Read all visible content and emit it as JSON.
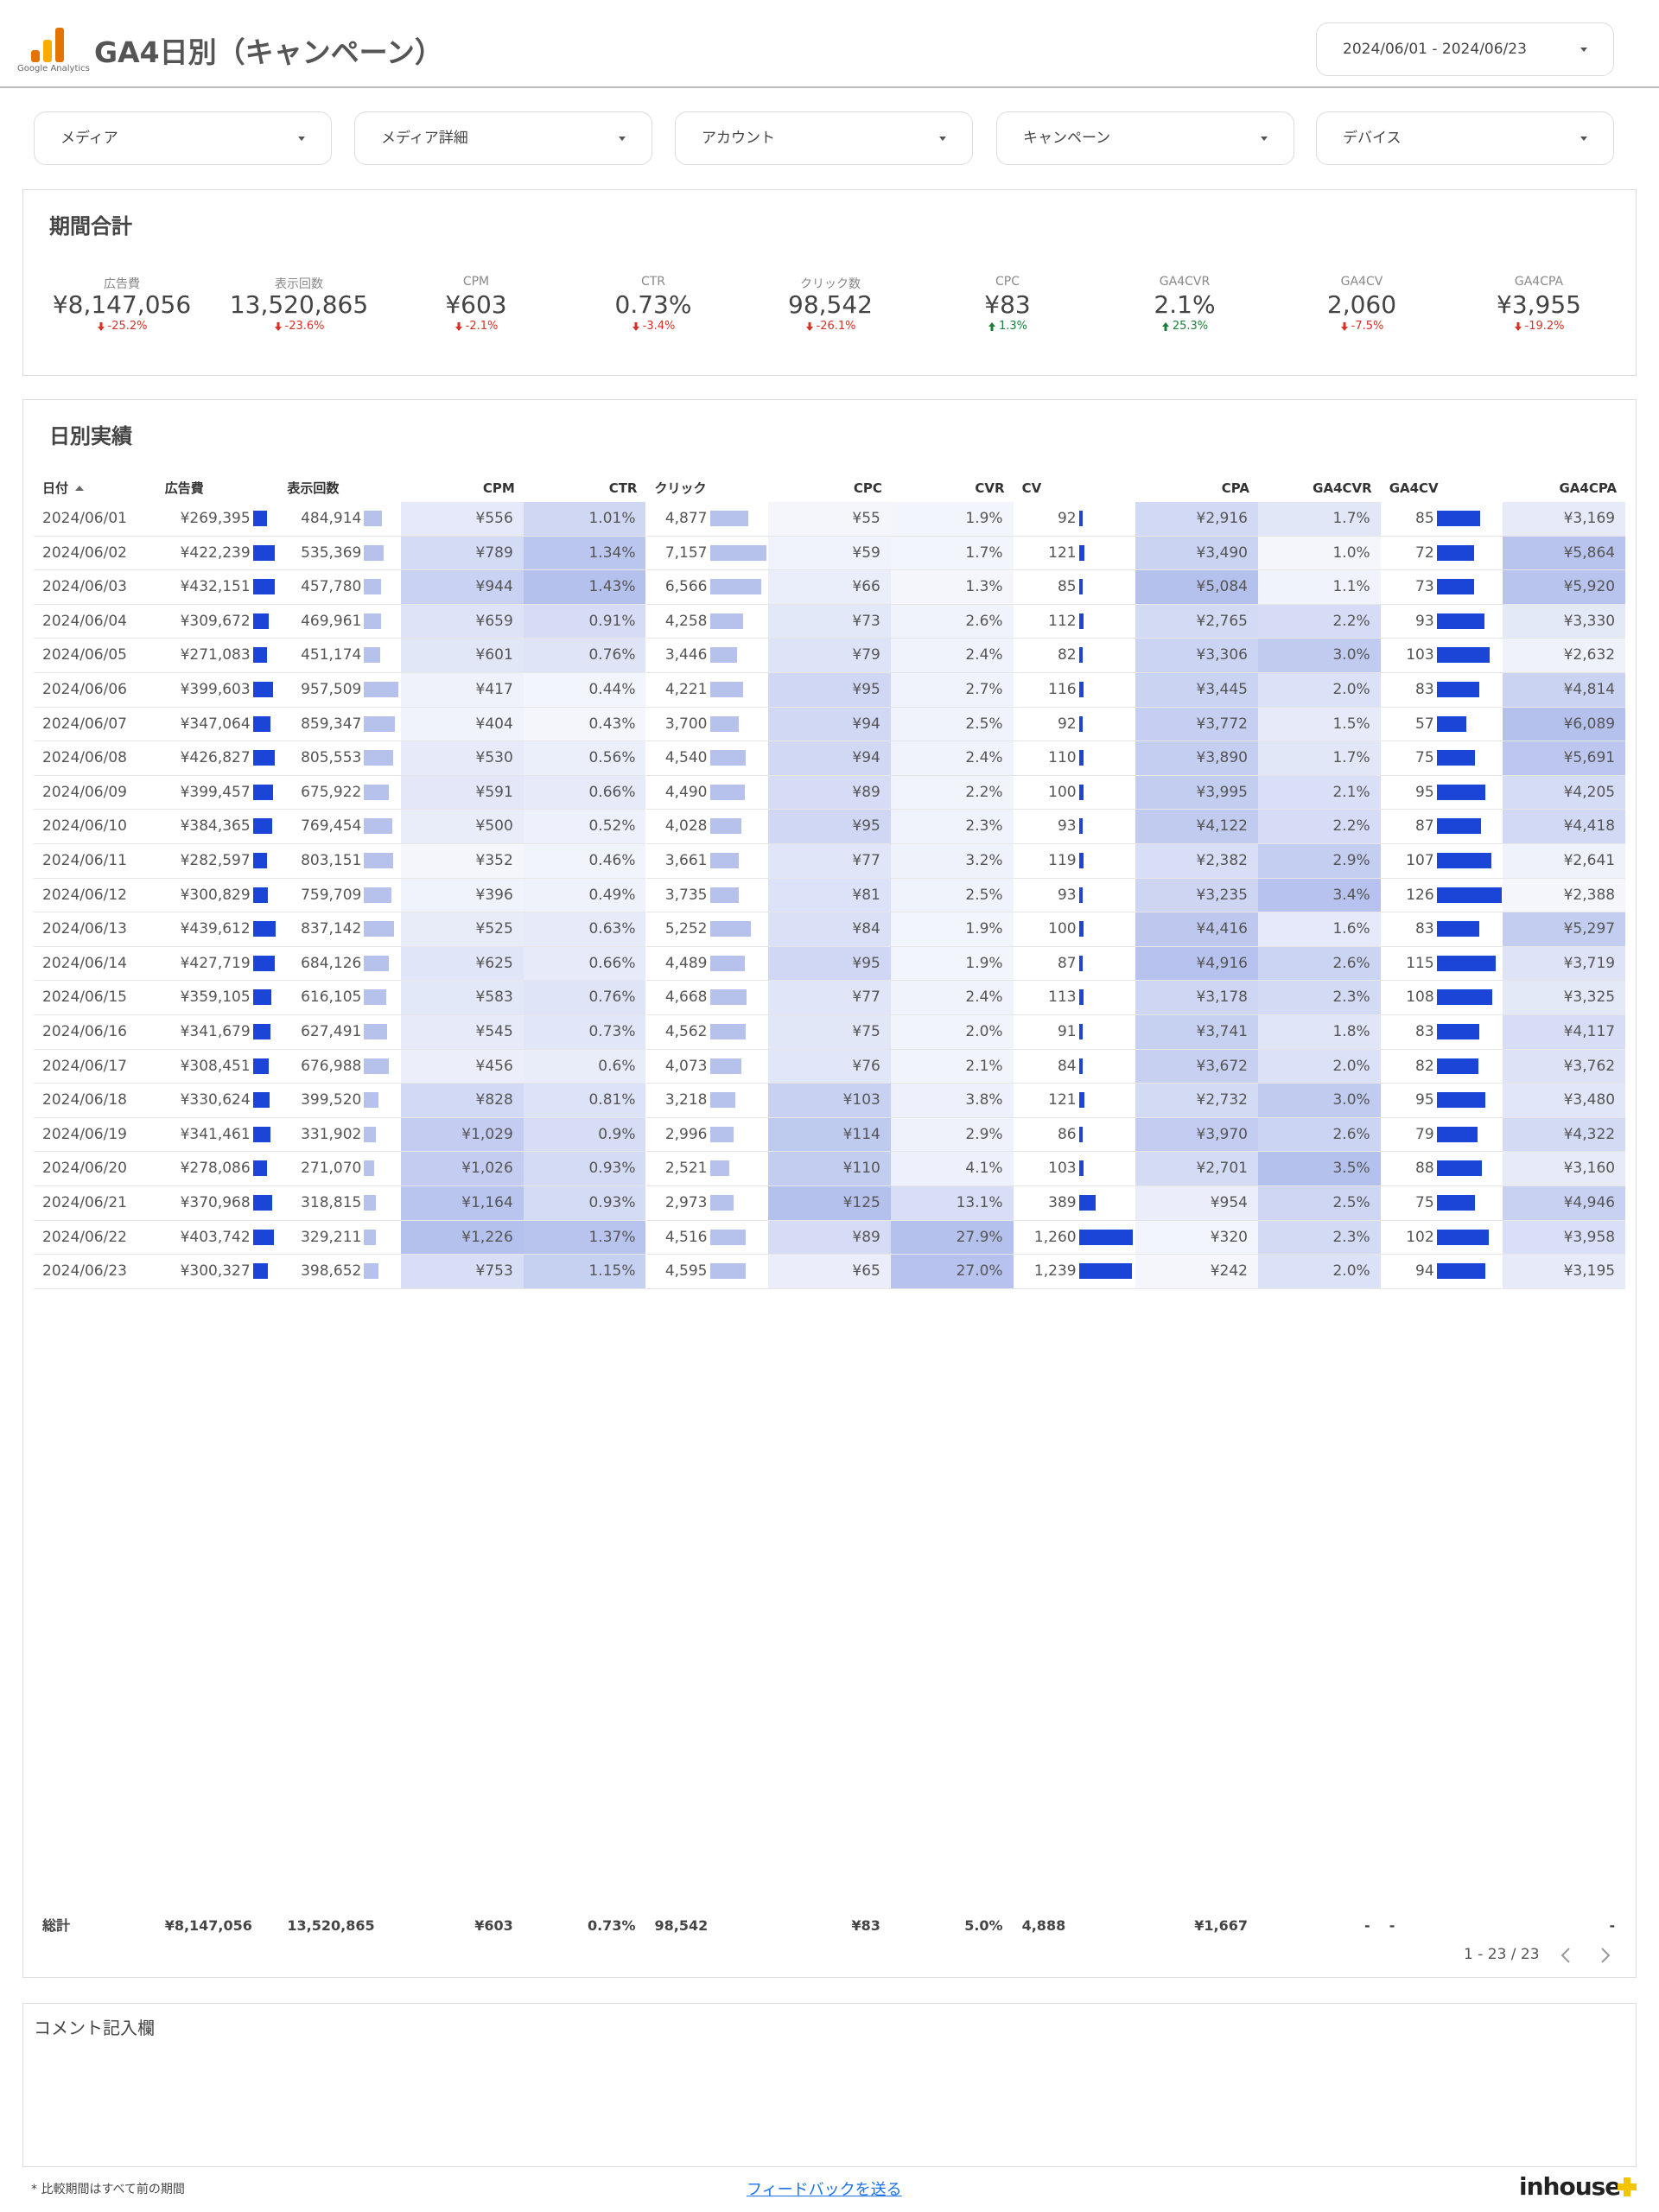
{
  "header": {
    "logo_text": "Google Analytics",
    "title": "GA4日別（キャンペーン）",
    "date_range": "2024/06/01 - 2024/06/23"
  },
  "filters": [
    "メディア",
    "メディア詳細",
    "アカウント",
    "キャンペーン",
    "デバイス"
  ],
  "summary": {
    "title": "期間合計",
    "metrics": [
      {
        "label": "広告費",
        "value": "¥8,147,056",
        "change": "-25.2%"
      },
      {
        "label": "表示回数",
        "value": "13,520,865",
        "change": "-23.6%"
      },
      {
        "label": "CPM",
        "value": "¥603",
        "change": "-2.1%"
      },
      {
        "label": "CTR",
        "value": "0.73%",
        "change": "-3.4%"
      },
      {
        "label": "クリック数",
        "value": "98,542",
        "change": "-26.1%"
      },
      {
        "label": "CPC",
        "value": "¥83",
        "change": "1.3%"
      },
      {
        "label": "GA4CVR",
        "value": "2.1%",
        "change": "25.3%"
      },
      {
        "label": "GA4CV",
        "value": "2,060",
        "change": "-7.5%"
      },
      {
        "label": "GA4CPA",
        "value": "¥3,955",
        "change": "-19.2%"
      }
    ]
  },
  "table": {
    "title": "日別実績",
    "columns": [
      "日付",
      "広告費",
      "表示回数",
      "CPM",
      "CTR",
      "クリック",
      "CPC",
      "CVR",
      "CV",
      "CPA",
      "GA4CVR",
      "GA4CV",
      "GA4CPA"
    ],
    "rows": [
      [
        "2024/06/01",
        "¥269,395",
        "484,914",
        "¥556",
        "1.01%",
        "4,877",
        "¥55",
        "1.9%",
        "92",
        "¥2,916",
        "1.7%",
        "85",
        "¥3,169"
      ],
      [
        "2024/06/02",
        "¥422,239",
        "535,369",
        "¥789",
        "1.34%",
        "7,157",
        "¥59",
        "1.7%",
        "121",
        "¥3,490",
        "1.0%",
        "72",
        "¥5,864"
      ],
      [
        "2024/06/03",
        "¥432,151",
        "457,780",
        "¥944",
        "1.43%",
        "6,566",
        "¥66",
        "1.3%",
        "85",
        "¥5,084",
        "1.1%",
        "73",
        "¥5,920"
      ],
      [
        "2024/06/04",
        "¥309,672",
        "469,961",
        "¥659",
        "0.91%",
        "4,258",
        "¥73",
        "2.6%",
        "112",
        "¥2,765",
        "2.2%",
        "93",
        "¥3,330"
      ],
      [
        "2024/06/05",
        "¥271,083",
        "451,174",
        "¥601",
        "0.76%",
        "3,446",
        "¥79",
        "2.4%",
        "82",
        "¥3,306",
        "3.0%",
        "103",
        "¥2,632"
      ],
      [
        "2024/06/06",
        "¥399,603",
        "957,509",
        "¥417",
        "0.44%",
        "4,221",
        "¥95",
        "2.7%",
        "116",
        "¥3,445",
        "2.0%",
        "83",
        "¥4,814"
      ],
      [
        "2024/06/07",
        "¥347,064",
        "859,347",
        "¥404",
        "0.43%",
        "3,700",
        "¥94",
        "2.5%",
        "92",
        "¥3,772",
        "1.5%",
        "57",
        "¥6,089"
      ],
      [
        "2024/06/08",
        "¥426,827",
        "805,553",
        "¥530",
        "0.56%",
        "4,540",
        "¥94",
        "2.4%",
        "110",
        "¥3,890",
        "1.7%",
        "75",
        "¥5,691"
      ],
      [
        "2024/06/09",
        "¥399,457",
        "675,922",
        "¥591",
        "0.66%",
        "4,490",
        "¥89",
        "2.2%",
        "100",
        "¥3,995",
        "2.1%",
        "95",
        "¥4,205"
      ],
      [
        "2024/06/10",
        "¥384,365",
        "769,454",
        "¥500",
        "0.52%",
        "4,028",
        "¥95",
        "2.3%",
        "93",
        "¥4,122",
        "2.2%",
        "87",
        "¥4,418"
      ],
      [
        "2024/06/11",
        "¥282,597",
        "803,151",
        "¥352",
        "0.46%",
        "3,661",
        "¥77",
        "3.2%",
        "119",
        "¥2,382",
        "2.9%",
        "107",
        "¥2,641"
      ],
      [
        "2024/06/12",
        "¥300,829",
        "759,709",
        "¥396",
        "0.49%",
        "3,735",
        "¥81",
        "2.5%",
        "93",
        "¥3,235",
        "3.4%",
        "126",
        "¥2,388"
      ],
      [
        "2024/06/13",
        "¥439,612",
        "837,142",
        "¥525",
        "0.63%",
        "5,252",
        "¥84",
        "1.9%",
        "100",
        "¥4,416",
        "1.6%",
        "83",
        "¥5,297"
      ],
      [
        "2024/06/14",
        "¥427,719",
        "684,126",
        "¥625",
        "0.66%",
        "4,489",
        "¥95",
        "1.9%",
        "87",
        "¥4,916",
        "2.6%",
        "115",
        "¥3,719"
      ],
      [
        "2024/06/15",
        "¥359,105",
        "616,105",
        "¥583",
        "0.76%",
        "4,668",
        "¥77",
        "2.4%",
        "113",
        "¥3,178",
        "2.3%",
        "108",
        "¥3,325"
      ],
      [
        "2024/06/16",
        "¥341,679",
        "627,491",
        "¥545",
        "0.73%",
        "4,562",
        "¥75",
        "2.0%",
        "91",
        "¥3,741",
        "1.8%",
        "83",
        "¥4,117"
      ],
      [
        "2024/06/17",
        "¥308,451",
        "676,988",
        "¥456",
        "0.6%",
        "4,073",
        "¥76",
        "2.1%",
        "84",
        "¥3,672",
        "2.0%",
        "82",
        "¥3,762"
      ],
      [
        "2024/06/18",
        "¥330,624",
        "399,520",
        "¥828",
        "0.81%",
        "3,218",
        "¥103",
        "3.8%",
        "121",
        "¥2,732",
        "3.0%",
        "95",
        "¥3,480"
      ],
      [
        "2024/06/19",
        "¥341,461",
        "331,902",
        "¥1,029",
        "0.9%",
        "2,996",
        "¥114",
        "2.9%",
        "86",
        "¥3,970",
        "2.6%",
        "79",
        "¥4,322"
      ],
      [
        "2024/06/20",
        "¥278,086",
        "271,070",
        "¥1,026",
        "0.93%",
        "2,521",
        "¥110",
        "4.1%",
        "103",
        "¥2,701",
        "3.5%",
        "88",
        "¥3,160"
      ],
      [
        "2024/06/21",
        "¥370,968",
        "318,815",
        "¥1,164",
        "0.93%",
        "2,973",
        "¥125",
        "13.1%",
        "389",
        "¥954",
        "2.5%",
        "75",
        "¥4,946"
      ],
      [
        "2024/06/22",
        "¥403,742",
        "329,211",
        "¥1,226",
        "1.37%",
        "4,516",
        "¥89",
        "27.9%",
        "1,260",
        "¥320",
        "2.3%",
        "102",
        "¥3,958"
      ],
      [
        "2024/06/23",
        "¥300,327",
        "398,652",
        "¥753",
        "1.15%",
        "4,595",
        "¥65",
        "27.0%",
        "1,239",
        "¥242",
        "2.0%",
        "94",
        "¥3,195"
      ]
    ],
    "totals": [
      "総計",
      "¥8,147,056",
      "13,520,865",
      "¥603",
      "0.73%",
      "98,542",
      "¥83",
      "5.0%",
      "4,888",
      "¥1,667",
      "-",
      "-",
      "-"
    ],
    "pagination": "1 - 23 / 23"
  },
  "comment": {
    "title": "コメント記入欄"
  },
  "footer": {
    "note": "* 比較期間はすべて前の期間",
    "link": "フィードバックを送る",
    "brand": "inhouse"
  }
}
